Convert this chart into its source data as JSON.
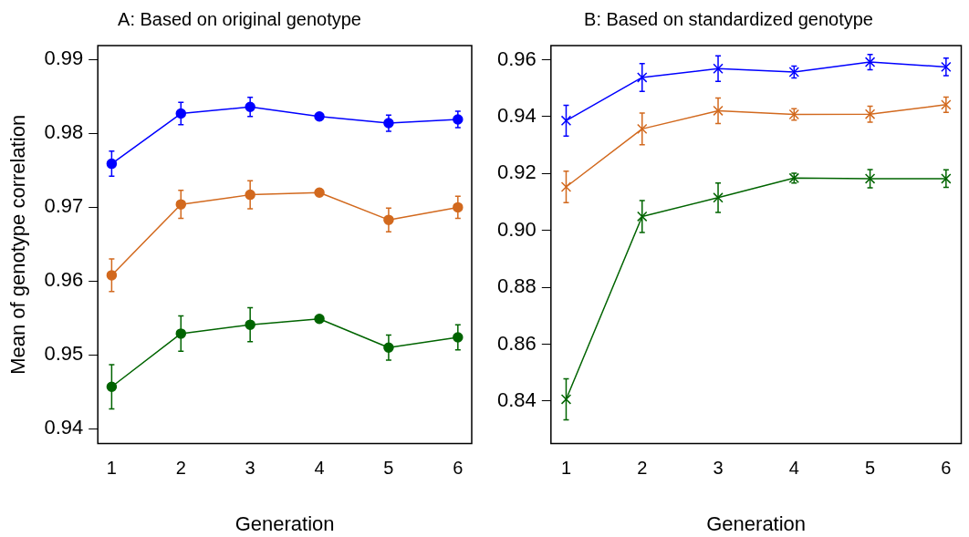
{
  "chart_data": [
    {
      "type": "line",
      "title": "A: Based on original genotype",
      "xlabel": "Generation",
      "ylabel": "Mean of genotype correlation",
      "x": [
        1,
        2,
        3,
        4,
        5,
        6
      ],
      "xlim": [
        0.8,
        6.2
      ],
      "xticks": [
        1,
        2,
        3,
        4,
        5,
        6
      ],
      "ylim": [
        0.938,
        0.9919
      ],
      "yticks": [
        0.94,
        0.95,
        0.96,
        0.97,
        0.98,
        0.99
      ],
      "grid": false,
      "legend": false,
      "marker": "circle",
      "line_style": "solid",
      "series": [
        {
          "color": "#d2691e",
          "values": [
            0.9608,
            0.9704,
            0.9717,
            0.972,
            0.9683,
            0.97
          ],
          "errors": [
            0.0022,
            0.0019,
            0.0019,
            null,
            0.0016,
            0.0015
          ]
        },
        {
          "color": "#006400",
          "values": [
            0.9457,
            0.9529,
            0.9541,
            0.9549,
            0.951,
            0.9524
          ],
          "errors": [
            0.003,
            0.0024,
            0.0023,
            null,
            0.0017,
            0.0017
          ]
        },
        {
          "color": "#0000ff",
          "values": [
            0.9759,
            0.9827,
            0.9836,
            0.9823,
            0.9814,
            0.9819
          ],
          "errors": [
            0.0017,
            0.0015,
            0.0013,
            null,
            0.0011,
            0.0011
          ]
        }
      ]
    },
    {
      "type": "line",
      "title": "B: Based on standardized genotype",
      "xlabel": "Generation",
      "x": [
        1,
        2,
        3,
        4,
        5,
        6
      ],
      "xlim": [
        0.8,
        6.2
      ],
      "xticks": [
        1,
        2,
        3,
        4,
        5,
        6
      ],
      "ylim": [
        0.825,
        0.965
      ],
      "yticks": [
        {
          "value": 0.84,
          "label": "0.84"
        },
        {
          "value": 0.86,
          "label": "0.86"
        },
        {
          "value": 0.88,
          "label": "0.88"
        },
        {
          "value": 0.9,
          "label": "0.90"
        },
        {
          "value": 0.92,
          "label": "0.92"
        },
        {
          "value": 0.94,
          "label": "0.94"
        },
        {
          "value": 0.96,
          "label": "0.96"
        }
      ],
      "grid": false,
      "legend": false,
      "marker": "cross",
      "line_style": "solid",
      "series": [
        {
          "color": "#d2691e",
          "values": [
            0.9153,
            0.9357,
            0.9421,
            0.9408,
            0.9409,
            0.9442
          ],
          "errors": [
            0.0055,
            0.0056,
            0.0045,
            0.002,
            0.0028,
            0.0027
          ]
        },
        {
          "color": "#006400",
          "values": [
            0.8406,
            0.9049,
            0.9115,
            0.9184,
            0.9182,
            0.9182
          ],
          "errors": [
            0.0072,
            0.0056,
            0.0052,
            0.0017,
            0.0032,
            0.0031
          ]
        },
        {
          "color": "#0000ff",
          "values": [
            0.9386,
            0.9538,
            0.9569,
            0.9557,
            0.9592,
            0.9575
          ],
          "errors": [
            0.0054,
            0.0049,
            0.0045,
            0.0021,
            0.0027,
            0.0031
          ]
        }
      ]
    }
  ]
}
